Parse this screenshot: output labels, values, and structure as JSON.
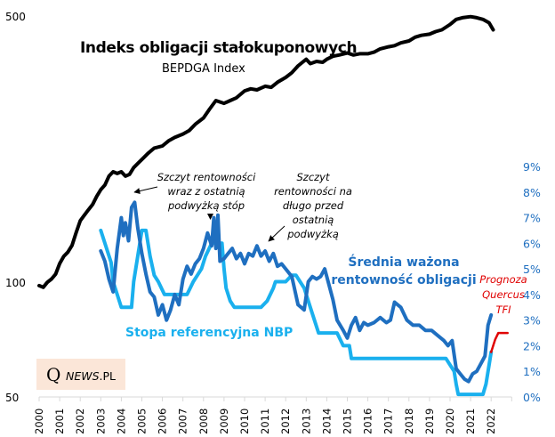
{
  "chart_data": {
    "type": "line",
    "title": "Indeks obligacji stałokuponowych",
    "subtitle": "BEPDGA Index",
    "x_tick_labels": [
      "2000",
      "2001",
      "2002",
      "2003",
      "2004",
      "2005",
      "2006",
      "2007",
      "2008",
      "2009",
      "2010",
      "2011",
      "2012",
      "2013",
      "2014",
      "2015",
      "2016",
      "2017",
      "2018",
      "2019",
      "2020",
      "2021",
      "2022"
    ],
    "xlim": [
      2000,
      2023
    ],
    "left_axis": {
      "scale": "log",
      "ylim": [
        50,
        500
      ],
      "tick_labels": [
        "500",
        "100",
        "50"
      ],
      "ticks": [
        500,
        100,
        50
      ]
    },
    "right_axis": {
      "ylim": [
        0,
        9
      ],
      "tick_labels": [
        "9%",
        "8%",
        "7%",
        "6%",
        "5%",
        "4%",
        "3%",
        "2%",
        "1%",
        "0%"
      ],
      "ticks": [
        9,
        8,
        7,
        6,
        5,
        4,
        3,
        2,
        1,
        0
      ],
      "color": "#1f6fc0"
    },
    "colors": {
      "index": "#000000",
      "yield": "#1f6fc0",
      "ref_rate": "#1ab0ee",
      "forecast": "#e00000",
      "axis": "#d9d9d9"
    },
    "series": [
      {
        "name": "Indeks obligacji stałokuponowych (BEPDGA Index)",
        "axis": "left",
        "color": "#000000",
        "x": [
          2000.0,
          2000.2,
          2000.4,
          2000.6,
          2000.8,
          2001.0,
          2001.2,
          2001.4,
          2001.6,
          2001.8,
          2002.0,
          2002.2,
          2002.4,
          2002.6,
          2002.8,
          2003.0,
          2003.2,
          2003.4,
          2003.6,
          2003.8,
          2004.0,
          2004.2,
          2004.4,
          2004.6,
          2004.8,
          2005.0,
          2005.3,
          2005.6,
          2006.0,
          2006.3,
          2006.6,
          2007.0,
          2007.3,
          2007.6,
          2008.0,
          2008.3,
          2008.6,
          2009.0,
          2009.3,
          2009.6,
          2010.0,
          2010.3,
          2010.6,
          2011.0,
          2011.3,
          2011.6,
          2012.0,
          2012.3,
          2012.6,
          2013.0,
          2013.2,
          2013.5,
          2013.8,
          2014.0,
          2014.3,
          2014.6,
          2015.0,
          2015.3,
          2015.6,
          2016.0,
          2016.3,
          2016.6,
          2017.0,
          2017.3,
          2017.6,
          2018.0,
          2018.3,
          2018.6,
          2019.0,
          2019.3,
          2019.6,
          2020.0,
          2020.3,
          2020.6,
          2021.0,
          2021.3,
          2021.6,
          2021.9,
          2022.1
        ],
        "values": [
          98,
          97,
          100,
          102,
          105,
          112,
          117,
          120,
          125,
          135,
          145,
          150,
          155,
          160,
          168,
          175,
          180,
          190,
          195,
          193,
          195,
          190,
          192,
          200,
          205,
          210,
          218,
          225,
          228,
          235,
          240,
          245,
          250,
          260,
          270,
          285,
          300,
          295,
          300,
          305,
          318,
          322,
          320,
          327,
          325,
          335,
          345,
          355,
          370,
          385,
          375,
          380,
          378,
          385,
          392,
          395,
          400,
          395,
          398,
          398,
          402,
          410,
          415,
          418,
          425,
          430,
          440,
          445,
          448,
          455,
          460,
          475,
          490,
          495,
          498,
          495,
          490,
          480,
          460
        ]
      },
      {
        "name": "Średnia ważona rentowność obligacji",
        "axis": "right",
        "color": "#1f6fc0",
        "x": [
          2003.0,
          2003.2,
          2003.4,
          2003.6,
          2003.8,
          2004.0,
          2004.1,
          2004.2,
          2004.35,
          2004.5,
          2004.65,
          2004.8,
          2005.0,
          2005.2,
          2005.4,
          2005.6,
          2005.8,
          2006.0,
          2006.2,
          2006.4,
          2006.6,
          2006.8,
          2007.0,
          2007.2,
          2007.4,
          2007.6,
          2007.8,
          2008.0,
          2008.2,
          2008.4,
          2008.5,
          2008.6,
          2008.7,
          2008.8,
          2009.0,
          2009.2,
          2009.4,
          2009.6,
          2009.8,
          2010.0,
          2010.2,
          2010.4,
          2010.6,
          2010.8,
          2011.0,
          2011.2,
          2011.4,
          2011.6,
          2011.8,
          2012.0,
          2012.3,
          2012.6,
          2012.9,
          2013.1,
          2013.3,
          2013.5,
          2013.7,
          2013.9,
          2014.1,
          2014.3,
          2014.5,
          2014.8,
          2015.0,
          2015.2,
          2015.4,
          2015.6,
          2015.8,
          2016.0,
          2016.3,
          2016.6,
          2016.9,
          2017.1,
          2017.3,
          2017.6,
          2017.9,
          2018.2,
          2018.5,
          2018.8,
          2019.1,
          2019.4,
          2019.7,
          2019.9,
          2020.1,
          2020.3,
          2020.5,
          2020.7,
          2020.9,
          2021.1,
          2021.3,
          2021.5,
          2021.7,
          2021.85,
          2022.0
        ],
        "values": [
          5.7,
          5.3,
          4.6,
          4.1,
          5.8,
          7.0,
          6.3,
          6.8,
          6.1,
          7.4,
          7.6,
          6.6,
          5.6,
          4.8,
          4.1,
          3.9,
          3.2,
          3.6,
          3.0,
          3.4,
          4.0,
          3.6,
          4.6,
          5.1,
          4.8,
          5.2,
          5.4,
          5.8,
          6.4,
          5.9,
          7.0,
          5.8,
          7.1,
          5.3,
          5.4,
          5.6,
          5.8,
          5.4,
          5.6,
          5.2,
          5.6,
          5.5,
          5.9,
          5.5,
          5.7,
          5.3,
          5.6,
          5.1,
          5.2,
          5.0,
          4.7,
          3.6,
          3.4,
          4.5,
          4.7,
          4.6,
          4.7,
          5.0,
          4.4,
          3.8,
          3.0,
          2.6,
          2.3,
          2.8,
          3.1,
          2.6,
          2.9,
          2.8,
          2.9,
          3.1,
          2.9,
          3.0,
          3.7,
          3.5,
          3.0,
          2.8,
          2.8,
          2.6,
          2.6,
          2.4,
          2.2,
          2.0,
          2.2,
          1.1,
          0.9,
          0.7,
          0.6,
          0.9,
          1.0,
          1.3,
          1.6,
          2.8,
          3.2
        ]
      },
      {
        "name": "Stopa referencyjna NBP",
        "axis": "right",
        "color": "#1ab0ee",
        "x": [
          2003.0,
          2003.5,
          2003.6,
          2004.0,
          2004.5,
          2004.6,
          2005.0,
          2005.2,
          2005.4,
          2005.6,
          2005.8,
          2006.1,
          2007.2,
          2007.35,
          2007.5,
          2007.7,
          2007.9,
          2008.1,
          2008.4,
          2008.9,
          2009.0,
          2009.1,
          2009.3,
          2009.5,
          2010.5,
          2010.8,
          2011.1,
          2011.4,
          2011.5,
          2012.0,
          2012.3,
          2012.5,
          2012.7,
          2012.9,
          2013.1,
          2013.3,
          2013.6,
          2014.5,
          2014.8,
          2015.1,
          2015.2,
          2019.8,
          2020.2,
          2020.3,
          2020.4,
          2021.6,
          2021.75,
          2021.9,
          2022.0
        ],
        "values": [
          6.5,
          5.25,
          4.5,
          3.5,
          3.5,
          4.5,
          6.5,
          6.5,
          5.5,
          4.75,
          4.5,
          4.0,
          4.0,
          4.25,
          4.5,
          4.75,
          5.0,
          5.5,
          6.0,
          6.0,
          5.0,
          4.25,
          3.75,
          3.5,
          3.5,
          3.5,
          3.75,
          4.25,
          4.5,
          4.5,
          4.75,
          4.75,
          4.5,
          4.25,
          3.75,
          3.25,
          2.5,
          2.5,
          2.0,
          2.0,
          1.5,
          1.5,
          1.0,
          0.5,
          0.1,
          0.1,
          0.5,
          1.25,
          1.75
        ]
      },
      {
        "name": "Prognoza Quercus TFI",
        "axis": "right",
        "color": "#e00000",
        "x": [
          2022.0,
          2022.2,
          2022.35,
          2022.8
        ],
        "values": [
          1.75,
          2.25,
          2.5,
          2.5
        ]
      }
    ],
    "annotations": [
      {
        "text_lines": [
          "Szczyt  rentowności",
          "wraz z ostatnią",
          "podwyżką stóp"
        ],
        "points_to": [
          [
            2004.7,
            7.6
          ],
          [
            2008.5,
            7.0
          ]
        ]
      },
      {
        "text_lines": [
          "Szczyt",
          "rentowności na",
          "długo przed",
          "ostatnią",
          "podwyżką"
        ],
        "points_to": [
          [
            2011.2,
            5.8
          ]
        ]
      }
    ],
    "series_labels": {
      "yield": [
        "Średnia ważona",
        "rentowność obligacji"
      ],
      "ref_rate": "Stopa referencyjna NBP",
      "forecast": [
        "Prognoza",
        "Quercus",
        "TFI"
      ]
    },
    "grid": false
  },
  "logo": {
    "q": "Q",
    "news": "NEWS",
    "pl": ".PL"
  }
}
